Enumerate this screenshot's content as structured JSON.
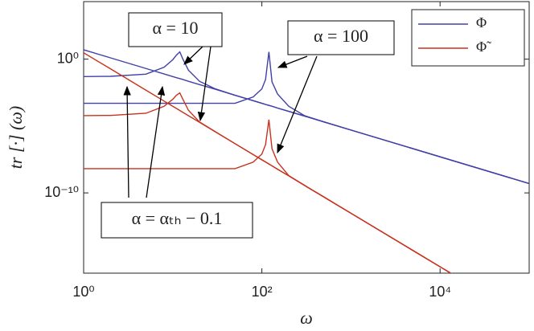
{
  "chart_data": {
    "type": "line",
    "xlabel": "ω",
    "ylabel": "tr [·] (ω)",
    "xscale": "log",
    "yscale": "log",
    "legend": "upper right",
    "xlim": [
      1,
      100000
    ],
    "ylim": [
      1e-16,
      20000
    ],
    "xticks": [
      {
        "value": 1,
        "label": "10⁰"
      },
      {
        "value": 100,
        "label": "10²"
      },
      {
        "value": 10000,
        "label": "10⁴"
      }
    ],
    "yticks": [
      {
        "value": 1e-10,
        "label": "10⁻¹⁰"
      },
      {
        "value": 1,
        "label": "10⁰"
      }
    ],
    "x": [
      1,
      2,
      5,
      8,
      10,
      11,
      12,
      13,
      15,
      20,
      30,
      50,
      80,
      100,
      110,
      120,
      130,
      150,
      200,
      300,
      500,
      1000,
      10000,
      100000
    ],
    "series": [
      {
        "name": "Φ",
        "color": "#4040a8",
        "lines": [
          {
            "values": [
              5,
              1.25,
              0.2,
              0.078,
              0.05,
              0.041,
              0.035,
              0.03,
              0.022,
              0.0125,
              0.0056,
              0.002,
              0.00078,
              0.0005,
              0.00041,
              0.00035,
              0.0003,
              0.00022,
              0.000125,
              5.6e-05,
              2e-05,
              5e-06,
              5e-08,
              5e-10
            ]
          },
          {
            "values": [
              0.05,
              0.052,
              0.075,
              0.25,
              0.9,
              2,
              3.5,
              1,
              0.15,
              0.022,
              0.006,
              0.002,
              0.00078,
              0.0005,
              0.00041,
              0.00035,
              0.0003,
              0.00022,
              0.000125,
              5.6e-05,
              2e-05,
              5e-06,
              5e-08,
              5e-10
            ]
          },
          {
            "values": [
              0.0005,
              0.0005,
              0.0005,
              0.0005,
              0.0005,
              0.0005,
              0.0005,
              0.0005,
              0.0005,
              0.0005,
              0.0005,
              0.0005,
              0.0015,
              0.006,
              0.03,
              3.5,
              0.02,
              0.0025,
              0.0003,
              6e-05,
              2e-05,
              5e-06,
              5e-08,
              5e-10
            ]
          }
        ]
      },
      {
        "name": "Φ̃",
        "color": "#c8321e",
        "lines": [
          {
            "values": [
              3,
              0.19,
              0.0048,
              0.00073,
              0.0003,
              0.000205,
              0.000145,
              0.000105,
              5.9e-05,
              1.9e-05,
              3.7e-06,
              4.8e-07,
              7.3e-08,
              3e-08,
              2.05e-08,
              1.45e-08,
              1.05e-08,
              5.9e-09,
              1.9e-09,
              3.7e-10,
              4.8e-11,
              3e-12,
              3e-16,
              3e-20
            ]
          },
          {
            "values": [
              6e-05,
              6.2e-05,
              9e-05,
              0.0003,
              0.001,
              0.002,
              0.003,
              0.001,
              0.00015,
              2e-05,
              3.8e-06,
              4.8e-07,
              7.3e-08,
              3e-08,
              2.05e-08,
              1.45e-08,
              1.05e-08,
              5.9e-09,
              1.9e-09,
              3.7e-10,
              4.8e-11,
              3e-12,
              3e-16,
              3e-20
            ]
          },
          {
            "values": [
              6.5e-09,
              6.5e-09,
              6.5e-09,
              6.5e-09,
              6.5e-09,
              6.5e-09,
              6.5e-09,
              6.5e-09,
              6.5e-09,
              6.5e-09,
              6.5e-09,
              6.5e-09,
              2e-08,
              8e-08,
              4e-07,
              3e-05,
              2e-07,
              2e-08,
              2e-09,
              3.7e-10,
              4.8e-11,
              3e-12,
              3e-16,
              3e-20
            ]
          }
        ]
      }
    ],
    "annotations": [
      "α = 10",
      "α = 100",
      "α = αₜₕ − 0.1"
    ]
  }
}
